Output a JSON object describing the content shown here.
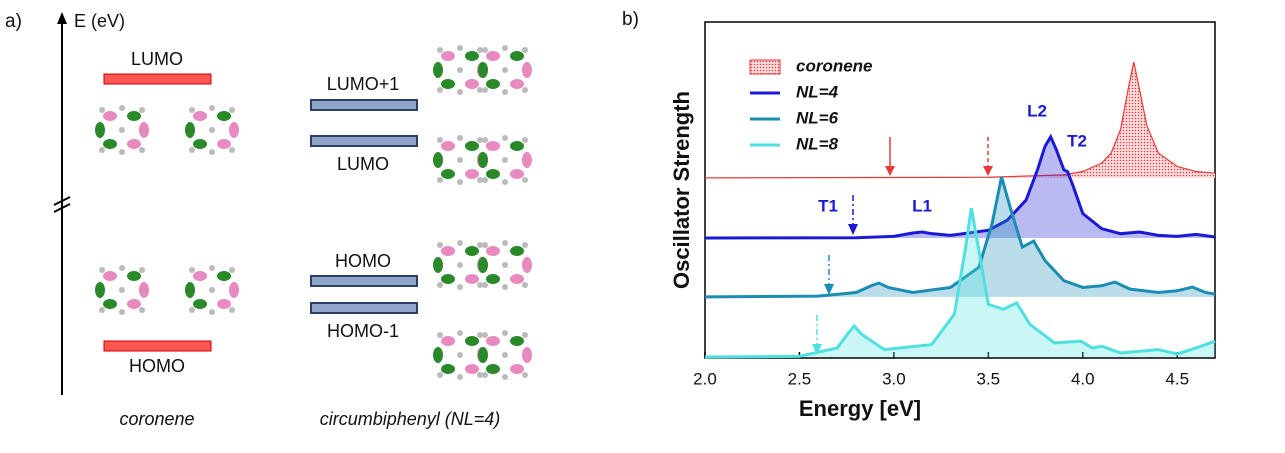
{
  "panel_a": {
    "label": "a)",
    "axis_label": "E (eV)",
    "coronene": {
      "lumo": "LUMO",
      "homo": "HOMO",
      "caption": "coronene"
    },
    "circumbiphenyl": {
      "lumo_plus_1": "LUMO+1",
      "lumo": "LUMO",
      "homo": "HOMO",
      "homo_minus_1": "HOMO-1",
      "caption": "circumbiphenyl (NL=4)"
    }
  },
  "chart_data": {
    "type": "line",
    "panel_label": "b)",
    "xlabel": "Energy [eV]",
    "ylabel": "Oscillator Strength",
    "xlim": [
      2.0,
      4.7
    ],
    "xticks": [
      {
        "value": 2.0,
        "label": "2.0"
      },
      {
        "value": 2.5,
        "label": "2.5"
      },
      {
        "value": 3.0,
        "label": "3.0"
      },
      {
        "value": 3.5,
        "label": "3.5"
      },
      {
        "value": 4.0,
        "label": "4.0"
      },
      {
        "value": 4.5,
        "label": "4.5"
      }
    ],
    "ylim": [
      0,
      10
    ],
    "annotations": [
      "L2",
      "T2",
      "L1",
      "T1"
    ],
    "series": [
      {
        "name": "coronene",
        "color": "#e83a3a",
        "filled": true,
        "x": [
          2.0,
          3.5,
          3.9,
          4.0,
          4.1,
          4.15,
          4.2,
          4.24,
          4.27,
          4.3,
          4.34,
          4.4,
          4.5,
          4.6,
          4.7
        ],
        "values": [
          5.36,
          5.38,
          5.45,
          5.55,
          5.8,
          6.1,
          6.8,
          8.0,
          8.81,
          8.0,
          6.9,
          6.1,
          5.7,
          5.55,
          5.5
        ]
      },
      {
        "name": "NL=4",
        "color": "#1a1ad6",
        "x": [
          2.0,
          2.8,
          3.0,
          3.1,
          3.15,
          3.2,
          3.3,
          3.5,
          3.6,
          3.7,
          3.76,
          3.8,
          3.83,
          3.86,
          3.9,
          3.92,
          3.95,
          4.0,
          4.1,
          4.2,
          4.3,
          4.4,
          4.5,
          4.6,
          4.7
        ],
        "values": [
          3.57,
          3.58,
          3.62,
          3.72,
          3.75,
          3.7,
          3.65,
          3.8,
          4.1,
          4.7,
          5.6,
          6.3,
          6.58,
          6.2,
          5.6,
          5.54,
          5.1,
          4.3,
          3.85,
          3.7,
          3.75,
          3.65,
          3.62,
          3.68,
          3.6
        ]
      },
      {
        "name": "NL=6",
        "color": "#1a8db5",
        "x": [
          2.0,
          2.6,
          2.8,
          2.88,
          2.92,
          2.97,
          3.1,
          3.3,
          3.45,
          3.52,
          3.57,
          3.62,
          3.68,
          3.74,
          3.8,
          3.9,
          4.0,
          4.1,
          4.17,
          4.25,
          4.4,
          4.5,
          4.58,
          4.65,
          4.7
        ],
        "values": [
          1.82,
          1.84,
          1.95,
          2.15,
          2.23,
          2.1,
          1.95,
          2.1,
          2.7,
          4.0,
          5.39,
          4.4,
          3.3,
          3.48,
          2.9,
          2.3,
          2.1,
          2.15,
          2.26,
          2.05,
          1.95,
          2.0,
          2.11,
          1.95,
          1.9
        ]
      },
      {
        "name": "NL=8",
        "color": "#4fe0e0",
        "x": [
          2.0,
          2.5,
          2.7,
          2.76,
          2.79,
          2.83,
          2.95,
          3.2,
          3.32,
          3.38,
          3.41,
          3.45,
          3.5,
          3.58,
          3.65,
          3.72,
          3.85,
          3.99,
          4.05,
          4.1,
          4.2,
          4.4,
          4.5,
          4.6,
          4.7
        ],
        "values": [
          0.03,
          0.05,
          0.3,
          0.75,
          0.95,
          0.7,
          0.25,
          0.4,
          1.3,
          3.3,
          4.46,
          3.2,
          1.6,
          1.45,
          1.64,
          1.0,
          0.45,
          0.5,
          0.3,
          0.35,
          0.15,
          0.25,
          0.12,
          0.3,
          0.5
        ]
      }
    ]
  }
}
